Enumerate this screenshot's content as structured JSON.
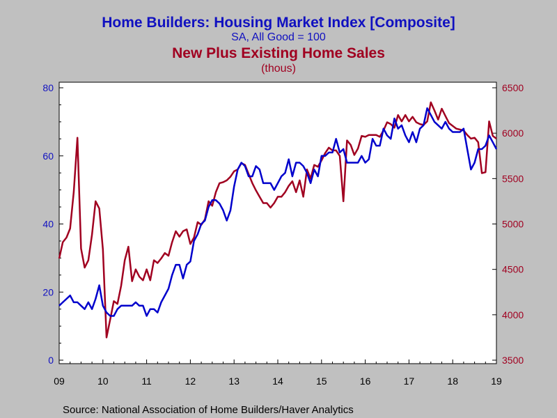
{
  "chart_data": {
    "type": "line",
    "title": "Home Builders: Housing Market Index  [Composite]",
    "subtitle": "SA, All Good = 100",
    "title2": "New Plus Existing Home Sales",
    "subtitle2": "(thous)",
    "source": "Source:  National Association of Home Builders/Haver Analytics",
    "x_tick_labels": [
      "09",
      "10",
      "11",
      "12",
      "13",
      "14",
      "15",
      "16",
      "17",
      "18",
      "19"
    ],
    "x_range": [
      2009.0,
      2019.0
    ],
    "left_axis": {
      "ylim": [
        0,
        80
      ],
      "ticks": [
        "0",
        "20",
        "40",
        "60",
        "80"
      ]
    },
    "right_axis": {
      "ylim": [
        3500,
        6500
      ],
      "ticks": [
        "3500",
        "4000",
        "4500",
        "5000",
        "5500",
        "6000",
        "6500"
      ]
    },
    "grid": false,
    "colors": {
      "hmi": "#0000cc",
      "sales": "#a00020",
      "left_axis_text": "#1010c0",
      "right_axis_text": "#a00020",
      "frame": "#000000",
      "plot_bg": "#ffffff",
      "page_bg": "#c0c0c0"
    },
    "series": [
      {
        "axis": "left",
        "x": [
          2009.0,
          2009.083,
          2009.167,
          2009.25,
          2009.333,
          2009.417,
          2009.5,
          2009.583,
          2009.667,
          2009.75,
          2009.833,
          2009.917,
          2010.0,
          2010.083,
          2010.167,
          2010.25,
          2010.333,
          2010.417,
          2010.5,
          2010.583,
          2010.667,
          2010.75,
          2010.833,
          2010.917,
          2011.0,
          2011.083,
          2011.167,
          2011.25,
          2011.333,
          2011.417,
          2011.5,
          2011.583,
          2011.667,
          2011.75,
          2011.833,
          2011.917,
          2012.0,
          2012.083,
          2012.167,
          2012.25,
          2012.333,
          2012.417,
          2012.5,
          2012.583,
          2012.667,
          2012.75,
          2012.833,
          2012.917,
          2013.0,
          2013.083,
          2013.167,
          2013.25,
          2013.333,
          2013.417,
          2013.5,
          2013.583,
          2013.667,
          2013.75,
          2013.833,
          2013.917,
          2014.0,
          2014.083,
          2014.167,
          2014.25,
          2014.333,
          2014.417,
          2014.5,
          2014.583,
          2014.667,
          2014.75,
          2014.833,
          2014.917,
          2015.0,
          2015.083,
          2015.167,
          2015.25,
          2015.333,
          2015.417,
          2015.5,
          2015.583,
          2015.667,
          2015.75,
          2015.833,
          2015.917,
          2016.0,
          2016.083,
          2016.167,
          2016.25,
          2016.333,
          2016.417,
          2016.5,
          2016.583,
          2016.667,
          2016.75,
          2016.833,
          2016.917,
          2017.0,
          2017.083,
          2017.167,
          2017.25,
          2017.333,
          2017.417,
          2017.5,
          2017.583,
          2017.667,
          2017.75,
          2017.833,
          2017.917,
          2018.0,
          2018.083,
          2018.167,
          2018.25,
          2018.333,
          2018.417,
          2018.5,
          2018.583,
          2018.667,
          2018.75,
          2018.833,
          2018.917,
          2019.0
        ],
        "values": [
          16,
          17,
          18,
          19,
          17,
          17,
          16,
          15,
          17,
          15,
          18,
          22,
          16,
          14,
          13,
          13,
          15,
          16,
          16,
          16,
          16,
          17,
          16,
          16,
          13,
          15,
          15,
          14,
          17,
          19,
          21,
          25,
          28,
          28,
          24,
          28,
          29,
          35,
          37,
          40,
          41,
          45,
          47,
          47,
          46,
          44,
          41,
          44,
          51,
          56,
          58,
          57,
          54,
          54,
          57,
          56,
          52,
          52,
          52,
          50,
          52,
          54,
          55,
          59,
          54,
          58,
          58,
          57,
          55,
          52,
          56,
          54,
          60,
          60,
          61,
          61,
          65,
          61,
          62,
          58,
          58,
          58,
          58,
          60,
          58,
          59,
          65,
          63,
          63,
          68,
          66,
          65,
          71,
          68,
          69,
          66,
          64,
          67,
          64,
          68,
          69,
          74,
          72,
          70,
          69,
          68,
          70,
          68,
          67,
          67,
          67,
          68,
          62,
          56,
          58,
          62,
          62,
          63,
          66,
          64,
          62
        ]
      },
      {
        "axis": "right",
        "x": [
          2009.0,
          2009.083,
          2009.167,
          2009.25,
          2009.333,
          2009.417,
          2009.5,
          2009.583,
          2009.667,
          2009.75,
          2009.833,
          2009.917,
          2010.0,
          2010.083,
          2010.167,
          2010.25,
          2010.333,
          2010.417,
          2010.5,
          2010.583,
          2010.667,
          2010.75,
          2010.833,
          2010.917,
          2011.0,
          2011.083,
          2011.167,
          2011.25,
          2011.333,
          2011.417,
          2011.5,
          2011.583,
          2011.667,
          2011.75,
          2011.833,
          2011.917,
          2012.0,
          2012.083,
          2012.167,
          2012.25,
          2012.333,
          2012.417,
          2012.5,
          2012.583,
          2012.667,
          2012.75,
          2012.833,
          2012.917,
          2013.0,
          2013.083,
          2013.167,
          2013.25,
          2013.333,
          2013.417,
          2013.5,
          2013.583,
          2013.667,
          2013.75,
          2013.833,
          2013.917,
          2014.0,
          2014.083,
          2014.167,
          2014.25,
          2014.333,
          2014.417,
          2014.5,
          2014.583,
          2014.667,
          2014.75,
          2014.833,
          2014.917,
          2015.0,
          2015.083,
          2015.167,
          2015.25,
          2015.333,
          2015.417,
          2015.5,
          2015.583,
          2015.667,
          2015.75,
          2015.833,
          2015.917,
          2016.0,
          2016.083,
          2016.167,
          2016.25,
          2016.333,
          2016.417,
          2016.5,
          2016.583,
          2016.667,
          2016.75,
          2016.833,
          2016.917,
          2017.0,
          2017.083,
          2017.167,
          2017.25,
          2017.333,
          2017.417,
          2017.5,
          2017.583,
          2017.667,
          2017.75,
          2017.833,
          2017.917,
          2018.0,
          2018.083,
          2018.167,
          2018.25,
          2018.333,
          2018.417,
          2018.5,
          2018.583,
          2018.667,
          2018.75,
          2018.833,
          2018.917,
          2019.0
        ],
        "values": [
          4620,
          4800,
          4850,
          4950,
          5350,
          5950,
          4730,
          4520,
          4600,
          4880,
          5250,
          5170,
          4720,
          3750,
          3950,
          4150,
          4120,
          4320,
          4600,
          4750,
          4370,
          4500,
          4420,
          4380,
          4500,
          4380,
          4600,
          4570,
          4620,
          4680,
          4650,
          4800,
          4920,
          4860,
          4920,
          4940,
          4780,
          4850,
          5020,
          4990,
          5050,
          5250,
          5200,
          5350,
          5450,
          5460,
          5480,
          5520,
          5580,
          5600,
          5670,
          5650,
          5550,
          5450,
          5370,
          5300,
          5230,
          5230,
          5180,
          5230,
          5300,
          5300,
          5350,
          5420,
          5470,
          5350,
          5480,
          5300,
          5600,
          5500,
          5650,
          5630,
          5700,
          5780,
          5840,
          5810,
          5810,
          5750,
          5250,
          5920,
          5870,
          5760,
          5830,
          5970,
          5960,
          5980,
          5980,
          5980,
          5960,
          6030,
          6120,
          6100,
          6060,
          6200,
          6130,
          6200,
          6130,
          6180,
          6120,
          6100,
          6090,
          6130,
          6340,
          6250,
          6150,
          6270,
          6190,
          6110,
          6080,
          6050,
          6040,
          6030,
          5980,
          5940,
          5950,
          5900,
          5560,
          5570,
          6130,
          5970,
          5940
        ]
      }
    ]
  }
}
